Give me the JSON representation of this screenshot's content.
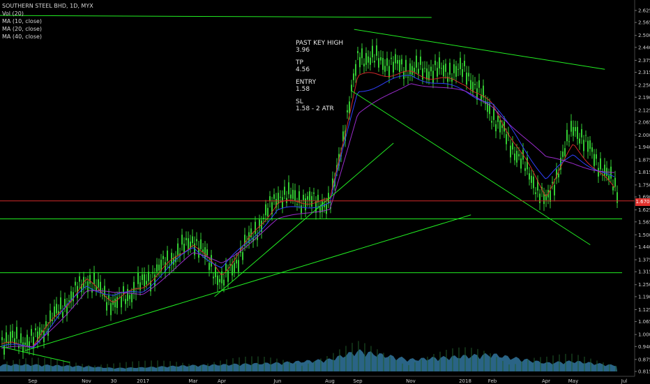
{
  "legend": {
    "symbol": "SOUTHERN STEEL BHD, 1D, MYX",
    "studies": [
      "Vol (20)",
      "MA (10, close)",
      "MA (20, close)",
      "MA (40, close)"
    ]
  },
  "notes": [
    {
      "label": "PAST KEY HIGH",
      "value": "3.96"
    },
    {
      "label": "TP",
      "value": "4.56"
    },
    {
      "label": "ENTRY",
      "value": "1.58"
    },
    {
      "label": "SL",
      "value": "1.58 - 2 ATR"
    }
  ],
  "price_tag": "1.670",
  "colors": {
    "background": "#000000",
    "candles": "#33cc33",
    "ma10": "#d42a2a",
    "ma20": "#3040ff",
    "ma40": "#9a2ccc",
    "trendlines": "#22ee22",
    "price_line": "#d42a2a",
    "volume": "#2f6f95"
  },
  "chart_data": {
    "type": "line",
    "title": "SOUTHERN STEEL BHD, 1D, MYX",
    "x_ticks": [
      "Sep",
      "Nov",
      "30",
      "2017",
      "Mar",
      "Apr",
      "Jun",
      "Aug",
      "Sep",
      "Nov",
      "2018",
      "Feb",
      "Apr",
      "May",
      "Jul"
    ],
    "y_ticks": [
      "2.625",
      "2.565",
      "2.500",
      "2.440",
      "2.375",
      "2.315",
      "2.250",
      "2.190",
      "2.125",
      "2.065",
      "2.000",
      "1.940",
      "1.875",
      "1.815",
      "1.750",
      "1.690",
      "1.625",
      "1.565",
      "1.500",
      "1.440",
      "1.375",
      "1.315",
      "1.250",
      "1.190",
      "1.125",
      "1.065",
      "1.000",
      "0.940",
      "0.875",
      "0.815"
    ],
    "ylim": [
      0.815,
      2.625
    ],
    "current_price": 1.67,
    "series": [
      {
        "name": "close",
        "x": [
          "Sep",
          "Nov",
          "30",
          "2017",
          "Mar",
          "Apr",
          "Jun",
          "Aug",
          "Sep",
          "Nov",
          "2018",
          "Feb",
          "Apr",
          "May",
          "Jul"
        ],
        "values": [
          0.97,
          1.28,
          1.15,
          1.26,
          1.48,
          1.26,
          1.7,
          1.65,
          2.4,
          2.33,
          2.32,
          2.1,
          1.66,
          2.05,
          1.66
        ]
      },
      {
        "name": "MA (10, close)",
        "x": [
          "Sep",
          "Nov",
          "30",
          "2017",
          "Mar",
          "Apr",
          "Jun",
          "Aug",
          "Sep",
          "Nov",
          "2018",
          "Feb",
          "Apr",
          "May",
          "Jul"
        ],
        "values": [
          0.95,
          1.27,
          1.17,
          1.24,
          1.46,
          1.3,
          1.66,
          1.67,
          2.3,
          2.31,
          2.26,
          2.15,
          1.7,
          1.95,
          1.68
        ]
      },
      {
        "name": "MA (20, close)",
        "x": [
          "Sep",
          "Nov",
          "30",
          "2017",
          "Mar",
          "Apr",
          "Jun",
          "Aug",
          "Sep",
          "Nov",
          "2018",
          "Feb",
          "Apr",
          "May",
          "Jul"
        ],
        "values": [
          0.94,
          1.25,
          1.19,
          1.22,
          1.44,
          1.33,
          1.62,
          1.66,
          2.22,
          2.3,
          2.22,
          2.16,
          1.78,
          1.9,
          1.75
        ]
      },
      {
        "name": "MA (40, close)",
        "x": [
          "Sep",
          "Nov",
          "30",
          "2017",
          "Mar",
          "Apr",
          "Jun",
          "Aug",
          "Sep",
          "Nov",
          "2018",
          "Feb",
          "Apr",
          "May",
          "Jul"
        ],
        "values": [
          0.93,
          1.22,
          1.2,
          1.21,
          1.4,
          1.36,
          1.57,
          1.64,
          2.1,
          2.27,
          2.21,
          2.15,
          1.88,
          1.86,
          1.8
        ]
      }
    ],
    "horizontal_levels": [
      1.58,
      1.31
    ],
    "trendlines": [
      {
        "from": [
          0,
          2.6
        ],
        "to": [
          0.68,
          2.59
        ]
      },
      {
        "from": [
          0.558,
          2.53
        ],
        "to": [
          0.953,
          2.33
        ]
      },
      {
        "from": [
          0.555,
          2.22
        ],
        "to": [
          0.93,
          1.45
        ]
      },
      {
        "from": [
          0.338,
          1.19
        ],
        "to": [
          0.62,
          1.96
        ]
      },
      {
        "from": [
          0.04,
          0.92
        ],
        "to": [
          0.742,
          1.6
        ]
      },
      {
        "from": [
          0.0,
          0.94
        ],
        "to": [
          0.11,
          0.86
        ]
      }
    ],
    "volume": [
      0.2,
      0.15,
      0.1,
      0.12,
      0.18,
      0.2,
      0.25,
      0.35,
      0.6,
      0.35,
      0.45,
      0.5,
      0.25,
      0.3,
      0.15
    ],
    "grid": false
  }
}
